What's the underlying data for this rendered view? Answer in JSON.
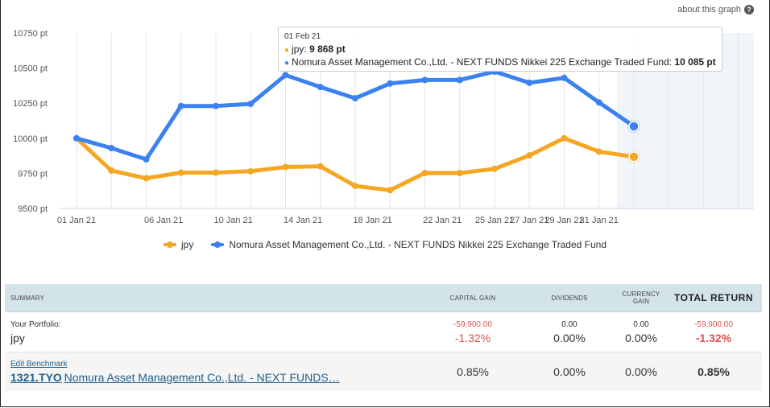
{
  "header": {
    "about_label": "about this graph",
    "help_icon": "?"
  },
  "tooltip": {
    "date": "01 Feb 21",
    "rows": [
      {
        "series": "jpy",
        "value": "9 868 pt",
        "color": "#f5a623"
      },
      {
        "series": "Nomura Asset Management Co.,Ltd. - NEXT FUNDS Nikkei 225 Exchange Traded Fund",
        "value": "10 085 pt",
        "color": "#3b82f0"
      }
    ]
  },
  "chart_data": {
    "type": "line",
    "x": [
      "01 Jan 21",
      "03 Jan 21",
      "05 Jan 21",
      "07 Jan 21",
      "09 Jan 21",
      "11 Jan 21",
      "13 Jan 21",
      "15 Jan 21",
      "17 Jan 21",
      "19 Jan 21",
      "21 Jan 21",
      "23 Jan 21",
      "25 Jan 21",
      "27 Jan 21",
      "29 Jan 21",
      "31 Jan 21",
      "02 Feb 21",
      "04 Feb 21",
      "06 Feb 21",
      "08 Feb 21"
    ],
    "x_ticks": [
      "01 Jan 21",
      "06 Jan 21",
      "10 Jan 21",
      "14 Jan 21",
      "18 Jan 21",
      "22 Jan 21",
      "25 Jan 21",
      "27 Jan 21",
      "29 Jan 21",
      "31 Jan 21"
    ],
    "y_ticks": [
      "9500 pt",
      "9750 pt",
      "10000 pt",
      "10250 pt",
      "10500 pt",
      "10750 pt"
    ],
    "ylim": [
      9500,
      10750
    ],
    "series": [
      {
        "name": "jpy",
        "color": "#f5a623",
        "values": [
          10000,
          9770,
          9715,
          9755,
          9755,
          9765,
          9795,
          9800,
          9660,
          9630,
          9752,
          9752,
          9782,
          9878,
          10000,
          9905,
          9868,
          9868,
          9868,
          9868
        ]
      },
      {
        "name": "Nomura Asset Management Co.,Ltd. - NEXT FUNDS Nikkei 225 Exchange Traded Fund",
        "color": "#3b82f0",
        "values": [
          10000,
          9930,
          9850,
          10230,
          10230,
          10245,
          10450,
          10365,
          10285,
          10390,
          10415,
          10415,
          10475,
          10395,
          10430,
          10255,
          10085,
          10085,
          10085,
          10085
        ]
      }
    ],
    "grid": true,
    "legend": "bottom-center"
  },
  "summary": {
    "headers": {
      "summary": "SUMMARY",
      "capital_gain": "CAPITAL GAIN",
      "dividends": "DIVIDENDS",
      "currency_gain": "CURRENCY GAIN",
      "total_return": "TOTAL RETURN"
    },
    "portfolio": {
      "label": "Your Portfolio:",
      "name": "jpy",
      "capital_gain_amount": "-59,900.00",
      "capital_gain_pct": "-1.32%",
      "dividends_amount": "0.00",
      "dividends_pct": "0.00%",
      "currency_gain_amount": "0.00",
      "currency_gain_pct": "0.00%",
      "total_amount": "-59,900.00",
      "total_pct": "-1.32%"
    },
    "benchmark": {
      "edit_label": "Edit Benchmark",
      "ticker": "1321.TYO",
      "name": "Nomura Asset Management Co.,Ltd. - NEXT FUNDS…",
      "capital_gain_pct": "0.85%",
      "dividends_pct": "0.00%",
      "currency_gain_pct": "0.00%",
      "total_pct": "0.85%"
    }
  }
}
